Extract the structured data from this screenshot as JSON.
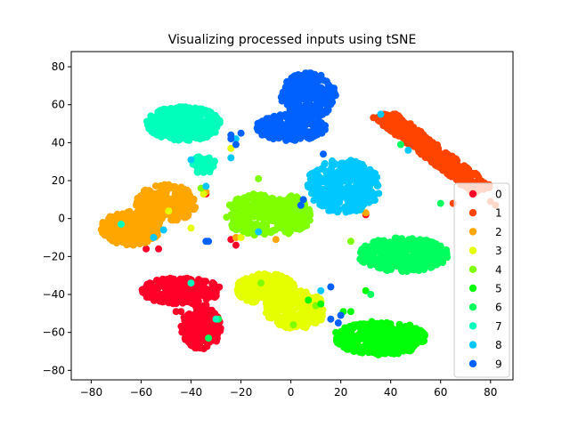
{
  "chart_data": {
    "type": "scatter",
    "title": "Visualizing processed inputs using tSNE",
    "xlabel": "",
    "ylabel": "",
    "xlim": [
      -88,
      89
    ],
    "ylim": [
      -85,
      88
    ],
    "xticks": [
      -80,
      -60,
      -40,
      -20,
      0,
      20,
      40,
      60,
      80
    ],
    "yticks": [
      -80,
      -60,
      -40,
      -20,
      0,
      20,
      40,
      60,
      80
    ],
    "xtick_labels": [
      "−80",
      "−60",
      "−40",
      "−20",
      "0",
      "20",
      "40",
      "60",
      "80"
    ],
    "ytick_labels": [
      "−80",
      "−60",
      "−40",
      "−20",
      "0",
      "20",
      "40",
      "60",
      "80"
    ],
    "grid": false,
    "legend_position": "right",
    "series": [
      {
        "name": "0",
        "color": "#ff0029",
        "clusters": [
          {
            "type": "ellipse",
            "cx": -44,
            "cy": -38,
            "rx": 16,
            "ry": 7,
            "n": 260
          },
          {
            "type": "ellipse",
            "cx": -36,
            "cy": -57,
            "rx": 8,
            "ry": 12,
            "n": 220
          }
        ],
        "points": [
          [
            -46,
            -49
          ],
          [
            -44,
            -49
          ],
          [
            -22,
            -14
          ],
          [
            -24,
            -11
          ],
          [
            -58,
            -16
          ],
          [
            -53,
            -16
          ],
          [
            30,
            2
          ],
          [
            -34,
            13
          ]
        ]
      },
      {
        "name": "1",
        "color": "#ff4400",
        "clusters": [
          {
            "type": "band",
            "x0": 37,
            "y0": 55,
            "x1": 77,
            "y1": 15,
            "w": 6,
            "n": 380
          }
        ],
        "points": [
          [
            52,
            38
          ],
          [
            52,
            36
          ],
          [
            65,
            8
          ],
          [
            80,
            9
          ],
          [
            82,
            7
          ]
        ]
      },
      {
        "name": "2",
        "color": "#ffa600",
        "clusters": [
          {
            "type": "ellipse",
            "cx": -64,
            "cy": -5,
            "rx": 12,
            "ry": 9,
            "n": 260
          },
          {
            "type": "ellipse",
            "cx": -50,
            "cy": 8,
            "rx": 12,
            "ry": 10,
            "n": 240
          }
        ],
        "points": [
          [
            -68,
            -3
          ],
          [
            -34,
            14
          ],
          [
            -22,
            -10
          ],
          [
            -6,
            -11
          ],
          [
            30,
            3
          ],
          [
            -2,
            -1
          ]
        ]
      },
      {
        "name": "3",
        "color": "#e6ff00",
        "clusters": [
          {
            "type": "ellipse",
            "cx": -10,
            "cy": -37,
            "rx": 12,
            "ry": 8,
            "n": 240
          },
          {
            "type": "ellipse",
            "cx": 2,
            "cy": -48,
            "rx": 12,
            "ry": 10,
            "n": 220
          }
        ],
        "points": [
          [
            -49,
            4
          ],
          [
            -40,
            -5
          ],
          [
            -24,
            37
          ],
          [
            -35,
            13
          ],
          [
            -20,
            -10
          ]
        ]
      },
      {
        "name": "4",
        "color": "#80ff00",
        "clusters": [
          {
            "type": "ellipse",
            "cx": -14,
            "cy": 2,
            "rx": 12,
            "ry": 11,
            "n": 220
          },
          {
            "type": "ellipse",
            "cx": 0,
            "cy": 2,
            "rx": 8,
            "ry": 10,
            "n": 180
          }
        ],
        "points": [
          [
            -12,
            -34
          ],
          [
            -13,
            21
          ],
          [
            24,
            -12
          ],
          [
            1,
            -56
          ],
          [
            10,
            -46
          ],
          [
            -36,
            16
          ]
        ]
      },
      {
        "name": "5",
        "color": "#00ff08",
        "clusters": [
          {
            "type": "ellipse",
            "cx": 36,
            "cy": -63,
            "rx": 18,
            "ry": 9,
            "n": 360
          }
        ],
        "points": [
          [
            7,
            -43
          ],
          [
            12,
            -45
          ],
          [
            21,
            -49
          ],
          [
            18,
            -60
          ],
          [
            24,
            -49
          ],
          [
            30,
            -38
          ]
        ]
      },
      {
        "name": "6",
        "color": "#00ff5e",
        "clusters": [
          {
            "type": "ellipse",
            "cx": 45,
            "cy": -19,
            "rx": 18,
            "ry": 9,
            "n": 340
          }
        ],
        "points": [
          [
            44,
            39
          ],
          [
            32,
            -40
          ],
          [
            -29,
            -53
          ],
          [
            -33,
            -63
          ],
          [
            60,
            8
          ]
        ]
      },
      {
        "name": "7",
        "color": "#00ffbb",
        "clusters": [
          {
            "type": "ellipse",
            "cx": -43,
            "cy": 50,
            "rx": 15,
            "ry": 9,
            "n": 320
          },
          {
            "type": "ellipse",
            "cx": -35,
            "cy": 28,
            "rx": 5,
            "ry": 5,
            "n": 45
          }
        ],
        "points": [
          [
            -40,
            -34
          ],
          [
            -68,
            -3
          ],
          [
            -30,
            -53
          ]
        ]
      },
      {
        "name": "8",
        "color": "#00c8ff",
        "clusters": [
          {
            "type": "ellipse",
            "cx": 21,
            "cy": 17,
            "rx": 15,
            "ry": 14,
            "n": 380
          }
        ],
        "points": [
          [
            -40,
            31
          ],
          [
            -24,
            32
          ],
          [
            -22,
            42
          ],
          [
            -13,
            -7
          ],
          [
            -55,
            -10
          ],
          [
            -51,
            -6
          ],
          [
            36,
            55
          ],
          [
            47,
            36
          ],
          [
            12,
            -38
          ],
          [
            -34,
            17
          ]
        ]
      },
      {
        "name": "9",
        "color": "#0061ff",
        "clusters": [
          {
            "type": "ellipse",
            "cx": 7,
            "cy": 65,
            "rx": 11,
            "ry": 12,
            "n": 260
          },
          {
            "type": "ellipse",
            "cx": 0,
            "cy": 48,
            "rx": 14,
            "ry": 7,
            "n": 200
          }
        ],
        "points": [
          [
            -24,
            44
          ],
          [
            -24,
            42
          ],
          [
            -20,
            45
          ],
          [
            -22,
            39
          ],
          [
            13,
            34
          ],
          [
            -33,
            -12
          ],
          [
            4,
            7
          ],
          [
            5,
            10
          ],
          [
            16,
            -36
          ],
          [
            16,
            -53
          ],
          [
            19,
            -55
          ],
          [
            20,
            -51
          ],
          [
            -34,
            -12
          ]
        ]
      }
    ]
  }
}
